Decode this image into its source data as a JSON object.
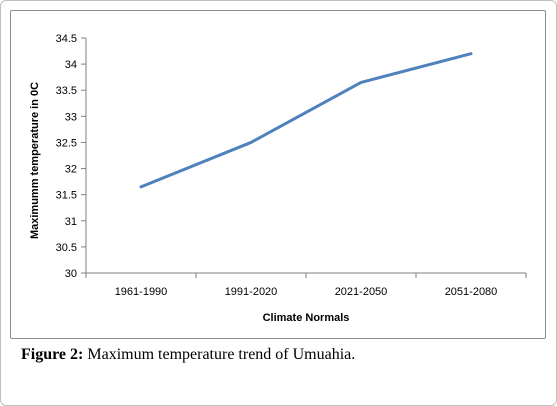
{
  "chart_data": {
    "type": "line",
    "categories": [
      "1961-1990",
      "1991-2020",
      "2021-2050",
      "2051-2080"
    ],
    "series": [
      {
        "values": [
          31.65,
          32.5,
          33.65,
          34.2
        ],
        "color": "#4f81bd"
      }
    ],
    "xlabel": "Climate Normals",
    "ylabel": "Maximumm temperature in 0C",
    "ylim": [
      30,
      34.5
    ],
    "ytick_step": 0.5,
    "yticks": [
      "30",
      "30.5",
      "31",
      "31.5",
      "32",
      "32.5",
      "33",
      "33.5",
      "34",
      "34.5"
    ],
    "grid": false,
    "legend": "none"
  },
  "caption": {
    "label": "Figure 2:",
    "text": " Maximum temperature trend of Umuahia."
  }
}
